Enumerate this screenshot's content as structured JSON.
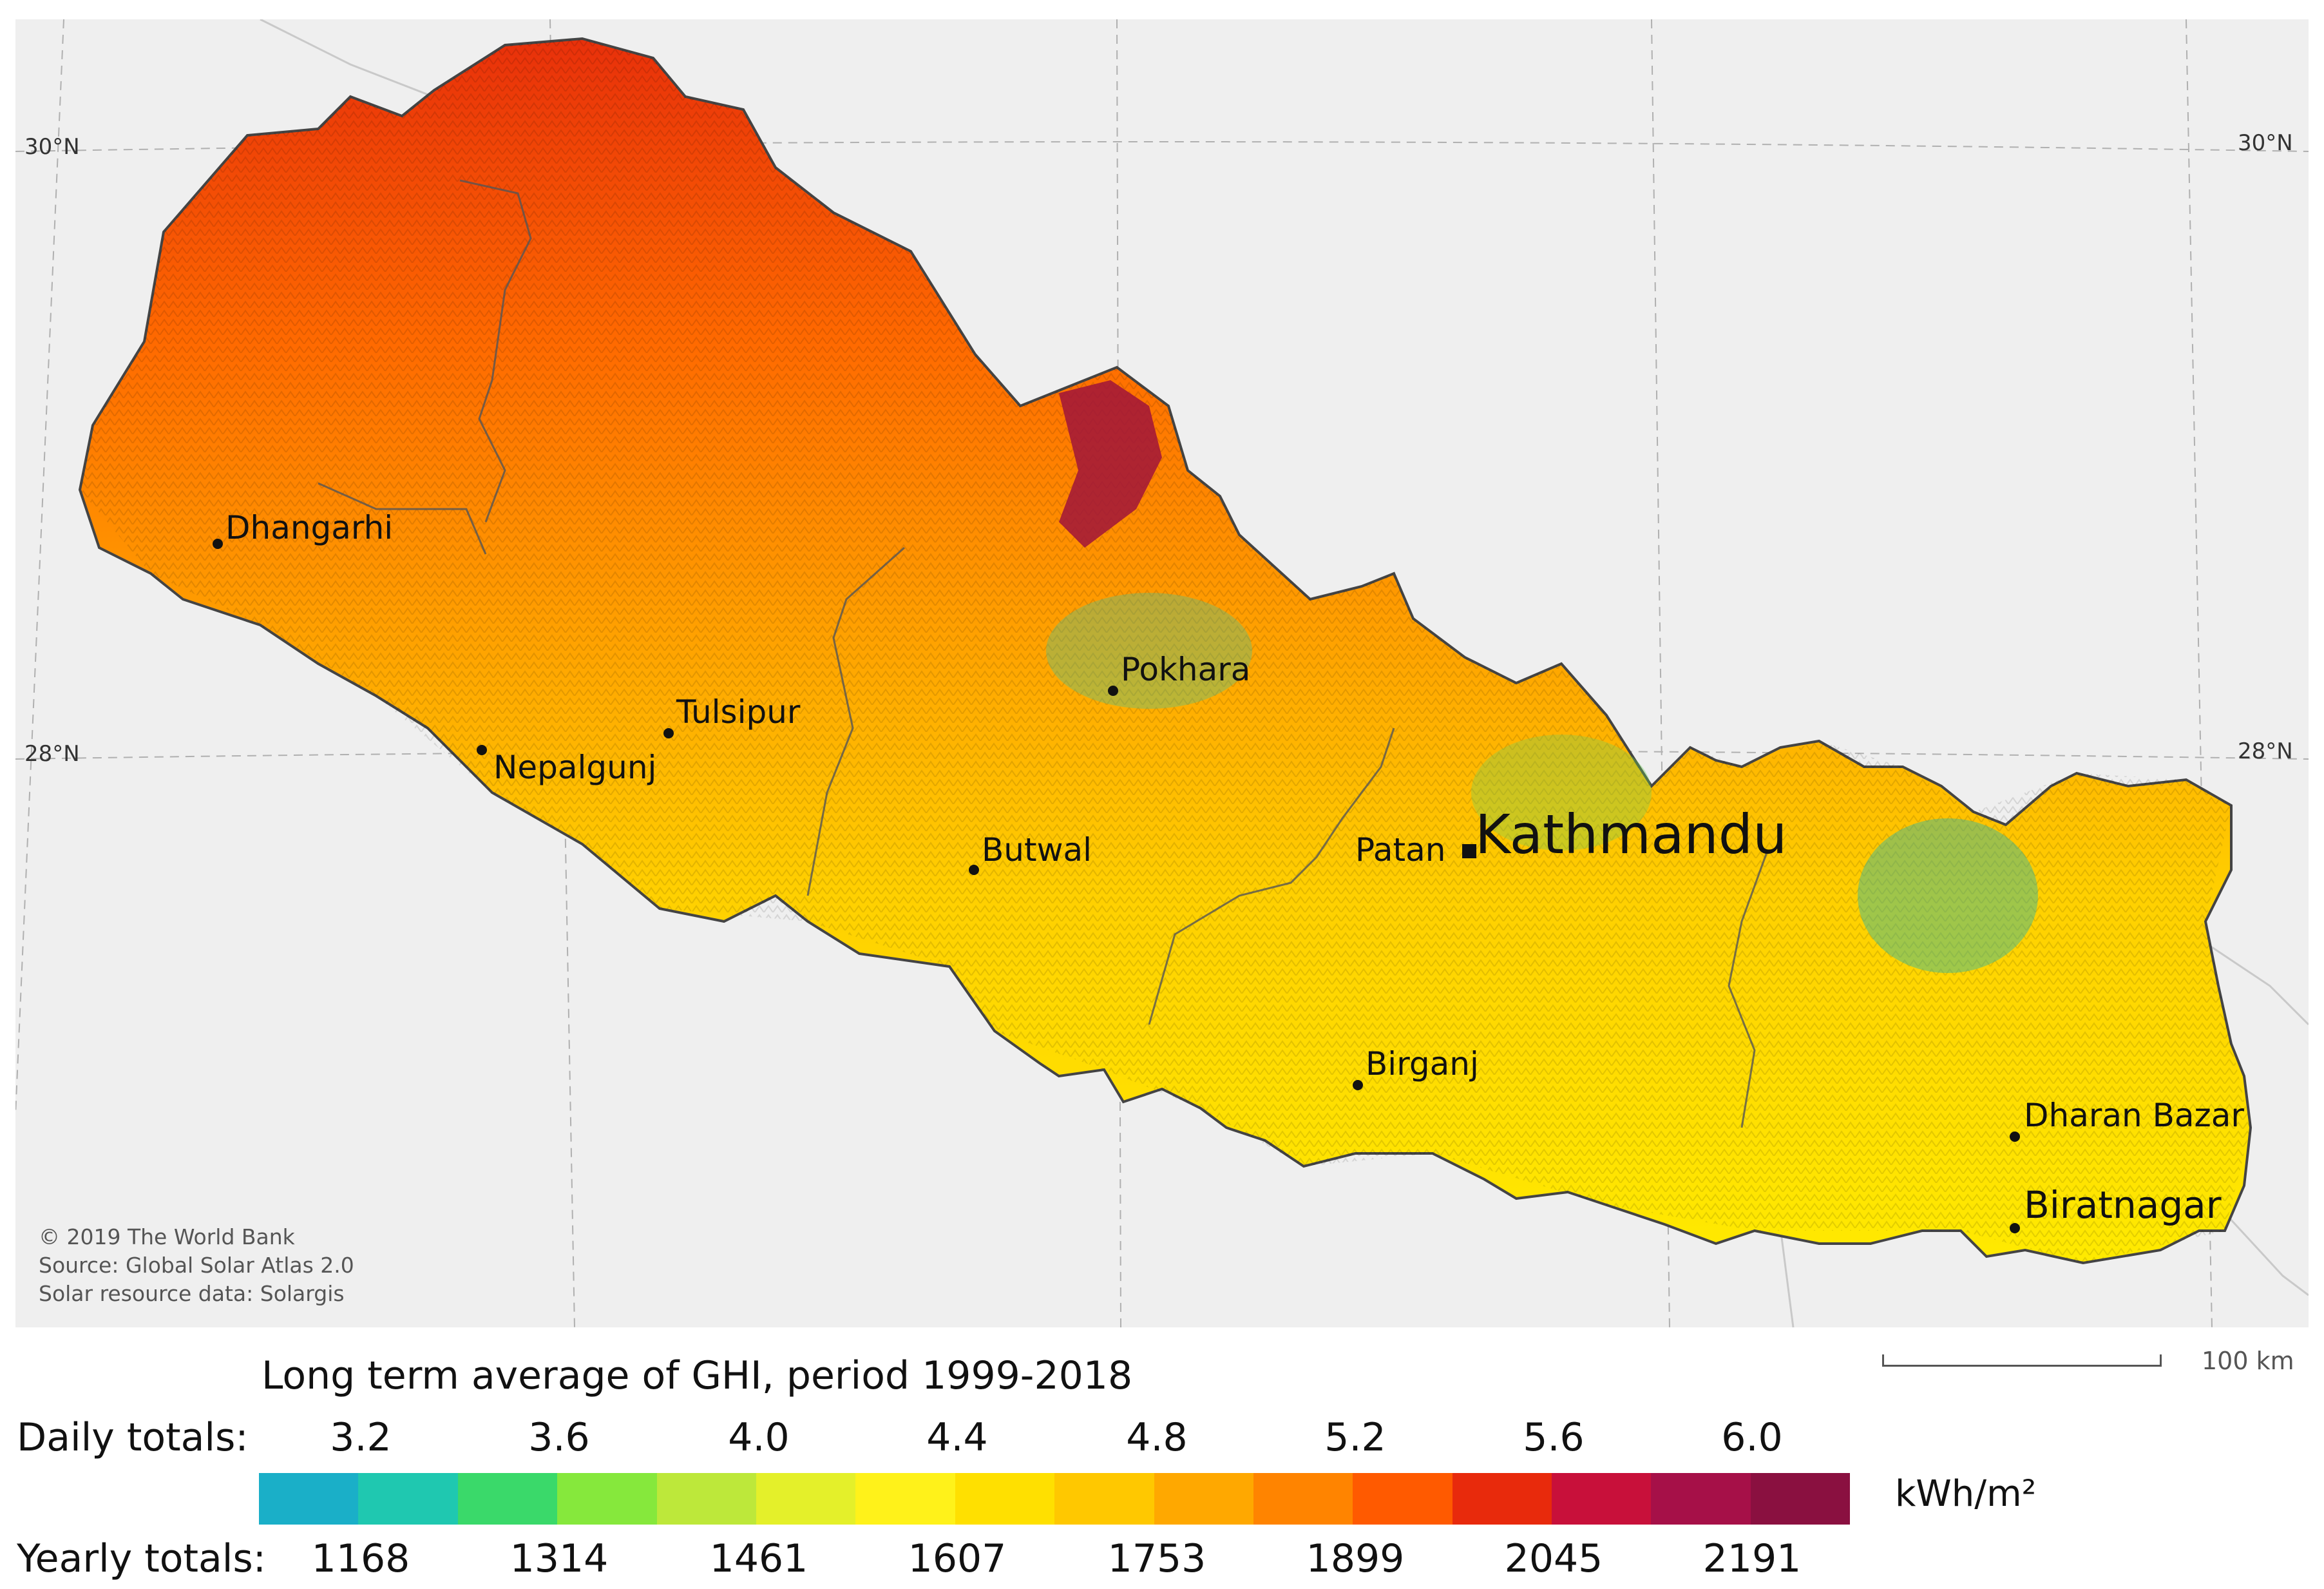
{
  "map": {
    "graticule_labels": {
      "top_left": "30°N",
      "top_right": "30°N",
      "mid_left": "28°N",
      "mid_right": "28°N"
    },
    "cities": [
      {
        "name": "Dhangarhi",
        "kind": "city"
      },
      {
        "name": "Tulsipur",
        "kind": "city"
      },
      {
        "name": "Nepalgunj",
        "kind": "city"
      },
      {
        "name": "Pokhara",
        "kind": "city"
      },
      {
        "name": "Butwal",
        "kind": "city"
      },
      {
        "name": "Patan",
        "kind": "city"
      },
      {
        "name": "Kathmandu",
        "kind": "capital"
      },
      {
        "name": "Birganj",
        "kind": "city"
      },
      {
        "name": "Dharan Bazar",
        "kind": "city"
      },
      {
        "name": "Biratnagar",
        "kind": "city"
      }
    ],
    "credits": [
      "© 2019 The World Bank",
      "Source: Global Solar Atlas 2.0",
      "Solar resource data: Solargis"
    ],
    "scale_label": "100 km",
    "colors": {
      "background": "#efefef",
      "country_fill_low": "#ffe000",
      "country_fill_high": "#8b1040"
    }
  },
  "legend": {
    "title": "Long term average of GHI, period 1999-2018",
    "daily_label": "Daily totals:",
    "yearly_label": "Yearly totals:",
    "daily_ticks": [
      "3.2",
      "3.6",
      "4.0",
      "4.4",
      "4.8",
      "5.2",
      "5.6",
      "6.0"
    ],
    "yearly_ticks": [
      "1168",
      "1314",
      "1461",
      "1607",
      "1753",
      "1899",
      "2045",
      "2191"
    ],
    "unit": "kWh/m²",
    "colors": [
      "#1aafc8",
      "#1fc8b0",
      "#3ad96a",
      "#86e83c",
      "#bde83a",
      "#e4f02a",
      "#fff21a",
      "#ffe000",
      "#ffc800",
      "#ffa800",
      "#ff8400",
      "#ff5a00",
      "#e82a0c",
      "#c8103a",
      "#a61048",
      "#8a1040"
    ]
  }
}
